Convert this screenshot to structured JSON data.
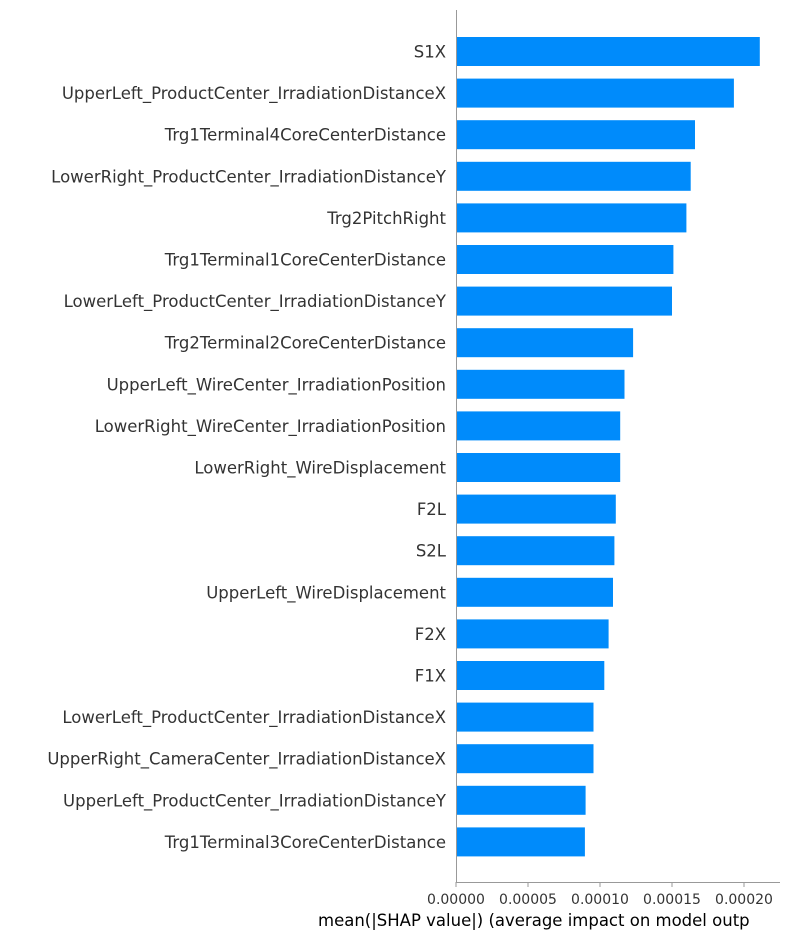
{
  "chart_data": {
    "type": "bar",
    "orientation": "horizontal",
    "title": "",
    "xlabel": "mean(|SHAP value|) (average impact on model outp",
    "ylabel": "",
    "xlim": [
      0,
      0.000225
    ],
    "x_ticks": [
      {
        "value": 0.0,
        "label": "0.00000"
      },
      {
        "value": 5e-05,
        "label": "0.00005"
      },
      {
        "value": 0.0001,
        "label": "0.00010"
      },
      {
        "value": 0.00015,
        "label": "0.00015"
      },
      {
        "value": 0.0002,
        "label": "0.00020"
      }
    ],
    "grid": false,
    "bar_color": "#008bfb",
    "categories": [
      "S1X",
      "UpperLeft_ProductCenter_IrradiationDistanceX",
      "Trg1Terminal4CoreCenterDistance",
      "LowerRight_ProductCenter_IrradiationDistanceY",
      "Trg2PitchRight",
      "Trg1Terminal1CoreCenterDistance",
      "LowerLeft_ProductCenter_IrradiationDistanceY",
      "Trg2Terminal2CoreCenterDistance",
      "UpperLeft_WireCenter_IrradiationPosition",
      "LowerRight_WireCenter_IrradiationPosition",
      "LowerRight_WireDisplacement",
      "F2L",
      "S2L",
      "UpperLeft_WireDisplacement",
      "F2X",
      "F1X",
      "LowerLeft_ProductCenter_IrradiationDistanceX",
      "UpperRight_CameraCenter_IrradiationDistanceX",
      "UpperLeft_ProductCenter_IrradiationDistanceY",
      "Trg1Terminal3CoreCenterDistance"
    ],
    "values": [
      0.000211,
      0.000193,
      0.000166,
      0.000163,
      0.00016,
      0.000151,
      0.00015,
      0.000123,
      0.000117,
      0.000114,
      0.000114,
      0.000111,
      0.00011,
      0.000109,
      0.000106,
      0.000103,
      9.55e-05,
      9.55e-05,
      9e-05,
      8.95e-05
    ]
  }
}
